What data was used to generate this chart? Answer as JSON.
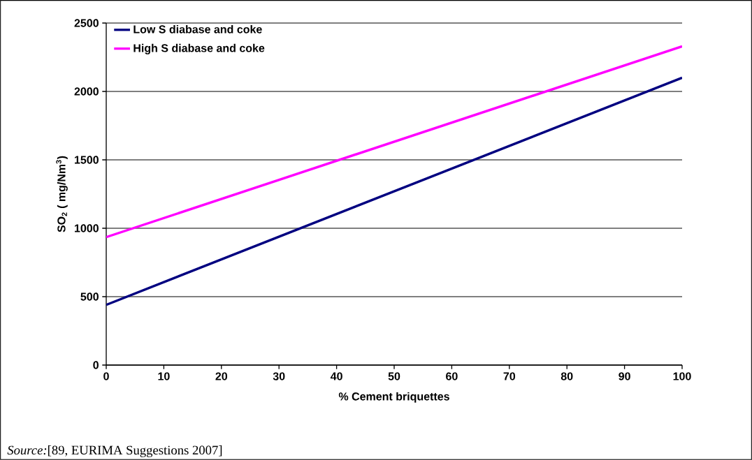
{
  "chart_data": {
    "type": "line",
    "xlabel": "% Cement briquettes",
    "ylabel": "SO$_{2}$ ( mg/Nm$^{3}$)",
    "x": [
      0,
      100
    ],
    "series": [
      {
        "name": "Low S diabase and coke",
        "color": "#000080",
        "values": [
          440,
          2100
        ]
      },
      {
        "name": "High S diabase and coke",
        "color": "#ff00ff",
        "values": [
          935,
          2330
        ]
      }
    ],
    "xlim": [
      0,
      100
    ],
    "ylim": [
      0,
      2500
    ],
    "xticks": [
      0,
      10,
      20,
      30,
      40,
      50,
      60,
      70,
      80,
      90,
      100
    ],
    "yticks": [
      0,
      500,
      1000,
      1500,
      2000,
      2500
    ],
    "grid": "y",
    "legend": "top left",
    "marker": "none",
    "line_style": "solid",
    "annotations": [
      "*Source:*[89, EURIMA Suggestions 2007]"
    ]
  }
}
